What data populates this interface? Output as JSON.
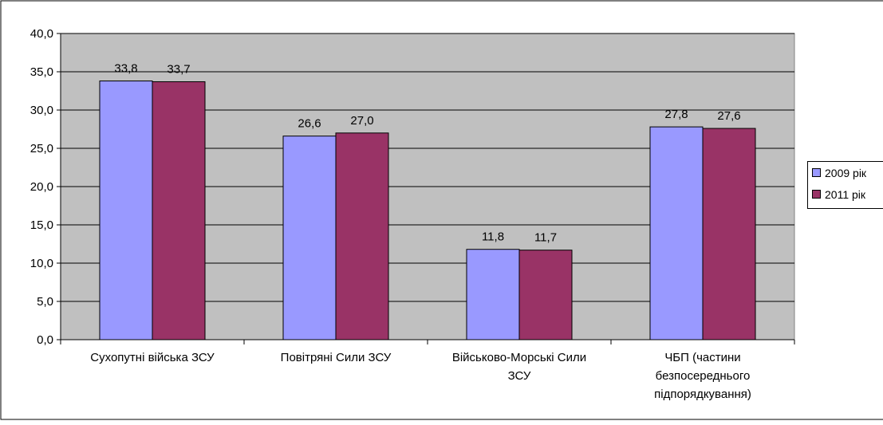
{
  "chart_data": {
    "type": "bar",
    "title": "",
    "xlabel": "",
    "ylabel": "",
    "ylim": [
      0,
      40
    ],
    "yticks": [
      0,
      5,
      10,
      15,
      20,
      25,
      30,
      35,
      40
    ],
    "ytick_labels": [
      "0,0",
      "5,0",
      "10,0",
      "15,0",
      "20,0",
      "25,0",
      "30,0",
      "35,0",
      "40,0"
    ],
    "grid": true,
    "legend_position": "right",
    "categories": [
      "Сухопутні війська ЗСУ",
      "Повітряні Сили ЗСУ",
      "Військово-Морські Сили ЗСУ",
      "ЧБП (частини безпосереднього підпорядкування)"
    ],
    "category_lines": [
      [
        "Сухопутні війська ЗСУ"
      ],
      [
        "Повітряні Сили ЗСУ"
      ],
      [
        "Військово-Морські Сили",
        "ЗСУ"
      ],
      [
        "ЧБП (частини",
        "безпосереднього",
        "підпорядкування)"
      ]
    ],
    "series": [
      {
        "name": "2009 рік",
        "color": "#9999ff",
        "values": [
          33.8,
          26.6,
          11.8,
          27.8
        ],
        "labels": [
          "33,8",
          "26,6",
          "11,8",
          "27,8"
        ]
      },
      {
        "name": "2011 рік",
        "color": "#993366",
        "values": [
          33.7,
          27.0,
          11.7,
          27.6
        ],
        "labels": [
          "33,7",
          "27,0",
          "11,7",
          "27,6"
        ]
      }
    ],
    "plot_background": "#c0c0c0"
  }
}
